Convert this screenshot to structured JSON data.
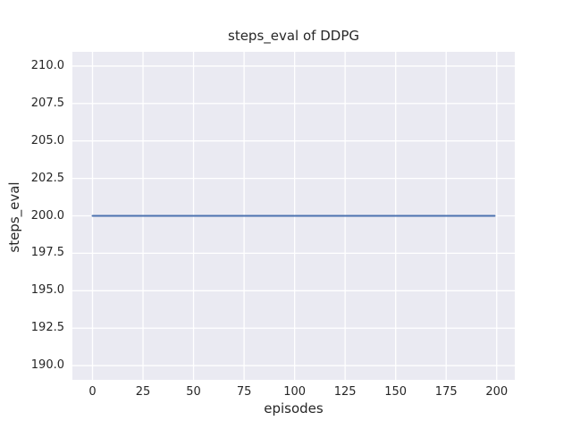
{
  "chart_data": {
    "type": "line",
    "title": "steps_eval of DDPG",
    "xlabel": "episodes",
    "ylabel": "steps_eval",
    "xlim": [
      -9.95,
      208.95
    ],
    "ylim": [
      189.05,
      210.95
    ],
    "x_ticks": [
      0,
      25,
      50,
      75,
      100,
      125,
      150,
      175,
      200
    ],
    "x_tick_labels": [
      "0",
      "25",
      "50",
      "75",
      "100",
      "125",
      "150",
      "175",
      "200"
    ],
    "y_ticks": [
      190.0,
      192.5,
      195.0,
      197.5,
      200.0,
      202.5,
      205.0,
      207.5,
      210.0
    ],
    "y_tick_labels": [
      "190.0",
      "192.5",
      "195.0",
      "197.5",
      "200.0",
      "202.5",
      "205.0",
      "207.5",
      "210.0"
    ],
    "grid": true,
    "legend": "none",
    "colors": {
      "plot_background": "#EAEAF2",
      "grid_line": "#FFFFFF",
      "series_line": "#4C72B0",
      "text": "#262626",
      "figure_background": "#FFFFFF"
    },
    "series": [
      {
        "name": "DDPG steps_eval",
        "description": "constant value 200 for every episode 0 through 199",
        "x": [
          0,
          199
        ],
        "y": [
          200,
          200
        ]
      }
    ]
  }
}
